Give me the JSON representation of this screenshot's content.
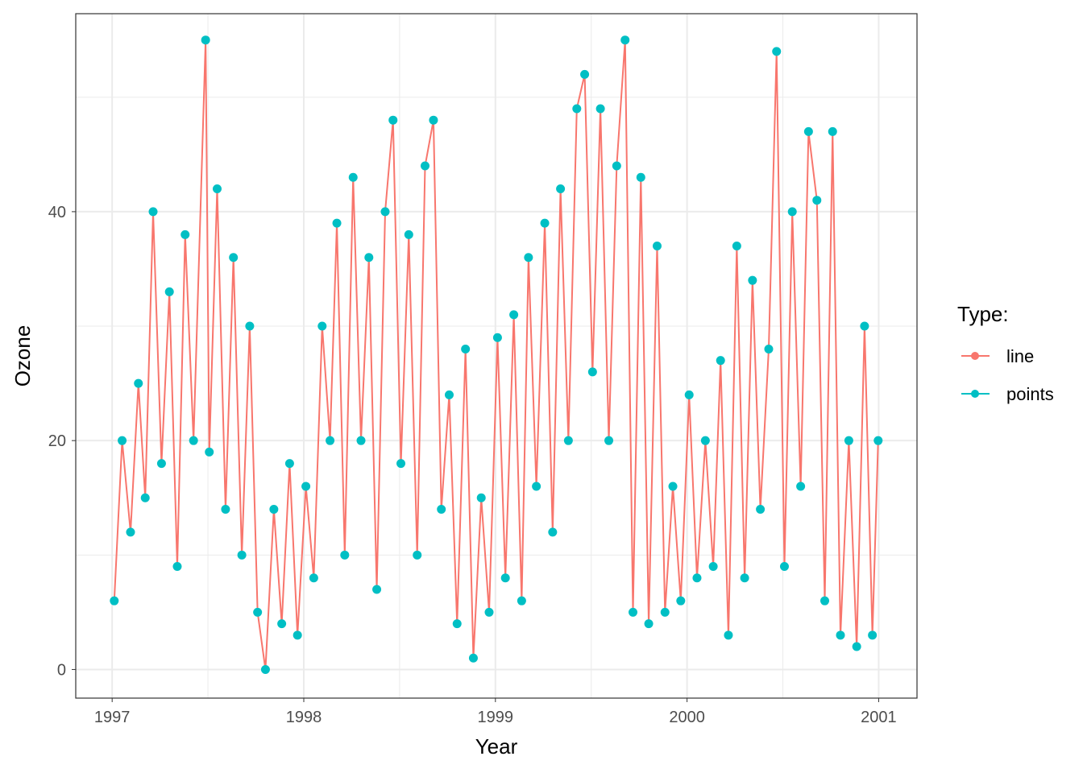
{
  "chart_data": {
    "type": "line",
    "title": "",
    "xlabel": "Year",
    "ylabel": "Ozone",
    "xlim": [
      1996.81,
      2001.2
    ],
    "ylim": [
      -2.5,
      57.3
    ],
    "x_ticks": [
      "1997",
      "1998",
      "1999",
      "2000",
      "2001"
    ],
    "y_ticks": [
      "0",
      "20",
      "40"
    ],
    "grid": true,
    "legend": {
      "title": "Type:",
      "position": "right",
      "entries": [
        "line",
        "points"
      ]
    },
    "colors": {
      "line": "#F8766D",
      "points": "#00BFC4"
    },
    "series": [
      {
        "name": "line",
        "x": "date",
        "y": "ozone"
      },
      {
        "name": "points",
        "x": "date",
        "y": "ozone"
      }
    ],
    "x": [
      "1997-01-05",
      "1997-01-20",
      "1997-02-05",
      "1997-02-20",
      "1997-03-05",
      "1997-03-20",
      "1997-04-05",
      "1997-04-20",
      "1997-05-05",
      "1997-05-20",
      "1997-06-05",
      "1997-06-28",
      "1997-07-05",
      "1997-07-20",
      "1997-08-05",
      "1997-08-20",
      "1997-09-05",
      "1997-09-20",
      "1997-10-05",
      "1997-10-20",
      "1997-11-05",
      "1997-11-20",
      "1997-12-05",
      "1997-12-20",
      "1998-01-05",
      "1998-01-20",
      "1998-02-05",
      "1998-02-20",
      "1998-03-05",
      "1998-03-20",
      "1998-04-05",
      "1998-04-20",
      "1998-05-05",
      "1998-05-20",
      "1998-06-05",
      "1998-06-20",
      "1998-07-05",
      "1998-07-20",
      "1998-08-05",
      "1998-08-20",
      "1998-09-05",
      "1998-09-20",
      "1998-10-05",
      "1998-10-20",
      "1998-11-05",
      "1998-11-20",
      "1998-12-05",
      "1998-12-20",
      "1999-01-05",
      "1999-01-20",
      "1999-02-05",
      "1999-02-20",
      "1999-03-05",
      "1999-03-20",
      "1999-04-05",
      "1999-04-20",
      "1999-05-05",
      "1999-05-20",
      "1999-06-05",
      "1999-06-20",
      "1999-07-05",
      "1999-07-20",
      "1999-08-05",
      "1999-08-20",
      "1999-09-05",
      "1999-09-20",
      "1999-10-05",
      "1999-10-20",
      "1999-11-05",
      "1999-11-20",
      "1999-12-05",
      "1999-12-20",
      "2000-01-05",
      "2000-01-20",
      "2000-02-05",
      "2000-02-20",
      "2000-03-05",
      "2000-03-20",
      "2000-04-05",
      "2000-04-20",
      "2000-05-05",
      "2000-05-20",
      "2000-06-05",
      "2000-06-20",
      "2000-07-05",
      "2000-07-20",
      "2000-08-05",
      "2000-08-20",
      "2000-09-05",
      "2000-09-20",
      "2000-10-05",
      "2000-10-20",
      "2000-11-05",
      "2000-11-20",
      "2000-12-05",
      "2000-12-20",
      "2000-12-31"
    ],
    "y": [
      6,
      20,
      12,
      25,
      15,
      40,
      18,
      33,
      9,
      38,
      20,
      55,
      19,
      42,
      14,
      36,
      10,
      30,
      5,
      0,
      14,
      4,
      18,
      3,
      16,
      8,
      30,
      20,
      39,
      10,
      43,
      20,
      36,
      7,
      40,
      48,
      18,
      38,
      10,
      44,
      48,
      14,
      24,
      4,
      28,
      1,
      15,
      5,
      29,
      8,
      31,
      6,
      36,
      16,
      39,
      12,
      42,
      20,
      49,
      52,
      26,
      49,
      20,
      44,
      55,
      5,
      43,
      4,
      37,
      5,
      16,
      6,
      24,
      8,
      20,
      9,
      27,
      3,
      37,
      8,
      34,
      14,
      28,
      54,
      9,
      40,
      16,
      47,
      41,
      6,
      47,
      3,
      20,
      2,
      30,
      3,
      20
    ]
  }
}
